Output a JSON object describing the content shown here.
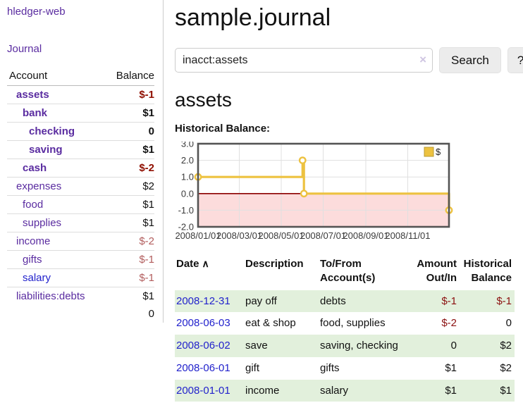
{
  "app": {
    "name": "hledger-web"
  },
  "sidebar": {
    "nav": {
      "journal": "Journal"
    },
    "table": {
      "col_account": "Account",
      "col_balance": "Balance"
    },
    "accounts": [
      {
        "name": "assets",
        "balance": "$-1",
        "indent": 1,
        "bold": true,
        "neg": true,
        "blue": false
      },
      {
        "name": "bank",
        "balance": "$1",
        "indent": 2,
        "bold": true,
        "neg": false,
        "blue": false
      },
      {
        "name": "checking",
        "balance": "0",
        "indent": 3,
        "bold": true,
        "neg": false,
        "blue": false
      },
      {
        "name": "saving",
        "balance": "$1",
        "indent": 3,
        "bold": true,
        "neg": false,
        "blue": false
      },
      {
        "name": "cash",
        "balance": "$-2",
        "indent": 2,
        "bold": true,
        "neg": true,
        "blue": false
      },
      {
        "name": "expenses",
        "balance": "$2",
        "indent": 1,
        "bold": false,
        "neg": false,
        "blue": false
      },
      {
        "name": "food",
        "balance": "$1",
        "indent": 2,
        "bold": false,
        "neg": false,
        "blue": false
      },
      {
        "name": "supplies",
        "balance": "$1",
        "indent": 2,
        "bold": false,
        "neg": false,
        "blue": false
      },
      {
        "name": "income",
        "balance": "$-2",
        "indent": 1,
        "bold": false,
        "neg": true,
        "blue": false
      },
      {
        "name": "gifts",
        "balance": "$-1",
        "indent": 2,
        "bold": false,
        "neg": true,
        "blue": false
      },
      {
        "name": "salary",
        "balance": "$-1",
        "indent": 2,
        "bold": false,
        "neg": true,
        "blue": true
      },
      {
        "name": "liabilities:debts",
        "balance": "$1",
        "indent": 1,
        "bold": false,
        "neg": false,
        "blue": false
      }
    ],
    "total": "0"
  },
  "main": {
    "title": "sample.journal",
    "search": {
      "value": "inacct:assets",
      "clear": "×",
      "search_label": "Search",
      "help_label": "?"
    },
    "account_heading": "assets",
    "chart_heading": "Historical Balance:"
  },
  "chart_data": {
    "type": "line",
    "step": true,
    "title": "Historical Balance",
    "series": [
      {
        "name": "$",
        "color": "#edc240",
        "points": [
          [
            "2008-01-01",
            1
          ],
          [
            "2008-06-01",
            2
          ],
          [
            "2008-06-03",
            0
          ],
          [
            "2008-12-31",
            -1
          ]
        ]
      }
    ],
    "x_range": [
      "2008-01-01",
      "2008-12-31"
    ],
    "x_ticks": [
      "2008/01/01",
      "2008/03/01",
      "2008/05/01",
      "2008/07/01",
      "2008/09/01",
      "2008/11/01"
    ],
    "y_ticks": [
      3.0,
      2.0,
      1.0,
      0.0,
      -1.0,
      -2.0
    ],
    "ylim": [
      -2,
      3
    ],
    "legend": {
      "label": "$",
      "position": "top-right"
    },
    "colors": {
      "series": "#edc240",
      "marker_fill": "#ffffff",
      "negative_region": "#fcdcdc",
      "zero_line": "#8b0000",
      "grid": "#e0e0e0",
      "border": "#545454",
      "tick_text": "#3a3a3a"
    },
    "grid": true
  },
  "register": {
    "headers": {
      "date": "Date",
      "sort_icon": "∧",
      "description": "Description",
      "tofrom_line1": "To/From",
      "tofrom_line2": "Account(s)",
      "amount_line1": "Amount",
      "amount_line2": "Out/In",
      "balance_line1": "Historical",
      "balance_line2": "Balance"
    },
    "rows": [
      {
        "date": "2008-12-31",
        "description": "pay off",
        "accounts": "debts",
        "amount": "$-1",
        "amount_neg": true,
        "balance": "$-1",
        "balance_neg": true
      },
      {
        "date": "2008-06-03",
        "description": "eat & shop",
        "accounts": "food, supplies",
        "amount": "$-2",
        "amount_neg": true,
        "balance": "0",
        "balance_neg": false
      },
      {
        "date": "2008-06-02",
        "description": "save",
        "accounts": "saving, checking",
        "amount": "0",
        "amount_neg": false,
        "balance": "$2",
        "balance_neg": false
      },
      {
        "date": "2008-06-01",
        "description": "gift",
        "accounts": "gifts",
        "amount": "$1",
        "amount_neg": false,
        "balance": "$2",
        "balance_neg": false
      },
      {
        "date": "2008-01-01",
        "description": "income",
        "accounts": "salary",
        "amount": "$1",
        "amount_neg": false,
        "balance": "$1",
        "balance_neg": false
      }
    ]
  }
}
